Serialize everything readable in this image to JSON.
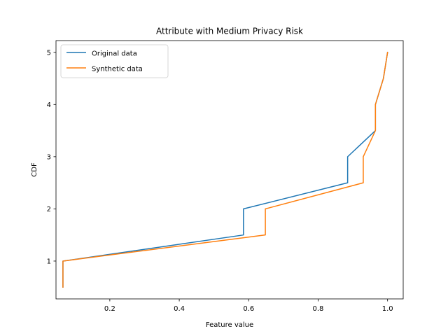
{
  "chart_data": {
    "type": "line",
    "title": "Attribute with Medium Privacy Risk",
    "xlabel": "Feature value",
    "ylabel": "CDF",
    "xlim": [
      0.045,
      1.045
    ],
    "ylim": [
      0.275,
      5.225
    ],
    "x_ticks": [
      0.2,
      0.4,
      0.6,
      0.8,
      1.0
    ],
    "x_tick_labels": [
      "0.2",
      "0.4",
      "0.6",
      "0.8",
      "1.0"
    ],
    "y_ticks": [
      1,
      2,
      3,
      4,
      5
    ],
    "y_tick_labels": [
      "1",
      "2",
      "3",
      "4",
      "5"
    ],
    "grid": false,
    "legend_position": "top-left",
    "series": [
      {
        "name": "Original data",
        "color": "#1f77b4",
        "points": [
          [
            0.065,
            0.5
          ],
          [
            0.065,
            1.0
          ],
          [
            0.585,
            1.5
          ],
          [
            0.585,
            2.0
          ],
          [
            0.885,
            2.5
          ],
          [
            0.885,
            3.0
          ],
          [
            0.965,
            3.5
          ],
          [
            0.965,
            4.0
          ],
          [
            0.988,
            4.5
          ],
          [
            1.0,
            5.0
          ]
        ]
      },
      {
        "name": "Synthetic data",
        "color": "#ff7f0e",
        "points": [
          [
            0.065,
            0.5
          ],
          [
            0.065,
            1.0
          ],
          [
            0.648,
            1.5
          ],
          [
            0.648,
            2.0
          ],
          [
            0.93,
            2.5
          ],
          [
            0.93,
            3.0
          ],
          [
            0.965,
            3.5
          ],
          [
            0.965,
            4.0
          ],
          [
            0.988,
            4.5
          ],
          [
            1.0,
            5.0
          ]
        ]
      }
    ]
  }
}
